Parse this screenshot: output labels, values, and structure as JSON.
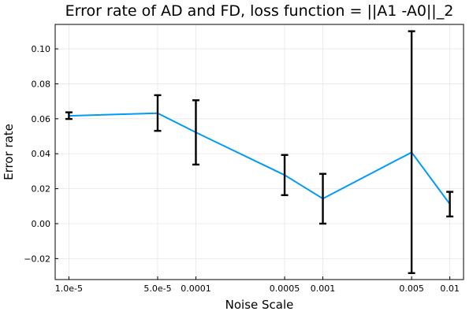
{
  "chart_data": {
    "type": "line",
    "title": "Error rate of AD and FD, loss function = ||A1 -A0||_2",
    "xlabel": "Noise Scale",
    "ylabel": "Error rate",
    "x_scale": "log",
    "x": [
      1e-05,
      5e-05,
      0.0001,
      0.0005,
      0.001,
      0.005,
      0.01
    ],
    "xtick_labels": [
      "1.0e-5",
      "5.0e-5",
      "0.0001",
      "0.0005",
      "0.001",
      "0.005",
      "0.01"
    ],
    "ylim": [
      -0.032,
      0.114
    ],
    "yticks": [
      -0.02,
      0.0,
      0.02,
      0.04,
      0.06,
      0.08,
      0.1
    ],
    "ytick_labels": [
      "−0.02",
      "0.00",
      "0.02",
      "0.04",
      "0.06",
      "0.08",
      "0.10"
    ],
    "grid": true,
    "legend": "none",
    "series": [
      {
        "color": "#009af9",
        "values": [
          0.0617,
          0.0632,
          0.0522,
          0.0278,
          0.0143,
          0.0408,
          0.0112
        ],
        "error_low": [
          0.0599,
          0.0531,
          0.0338,
          0.0163,
          0.0,
          -0.0283,
          0.0041
        ],
        "error_high": [
          0.0637,
          0.0735,
          0.0706,
          0.0393,
          0.0285,
          0.1101,
          0.0182
        ]
      }
    ]
  }
}
